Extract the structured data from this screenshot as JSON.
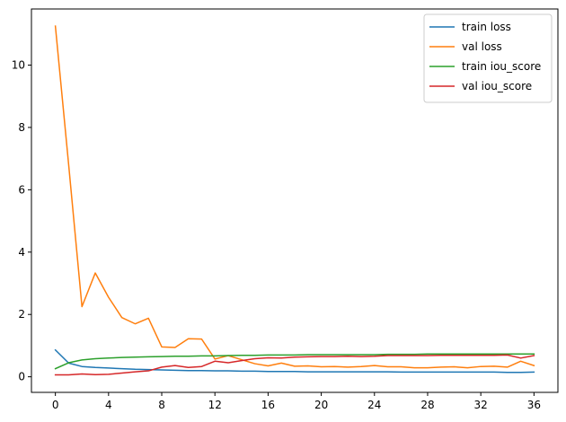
{
  "chart_data": {
    "type": "line",
    "title": "",
    "xlabel": "",
    "ylabel": "",
    "xlim": [
      -1.8,
      37.8
    ],
    "ylim": [
      -0.5,
      11.8
    ],
    "xticks": [
      0,
      4,
      8,
      12,
      16,
      20,
      24,
      28,
      32,
      36
    ],
    "yticks": [
      0,
      2,
      4,
      6,
      8,
      10
    ],
    "grid": false,
    "legend_position": "top-right",
    "x": [
      0,
      1,
      2,
      3,
      4,
      5,
      6,
      7,
      8,
      9,
      10,
      11,
      12,
      13,
      14,
      15,
      16,
      17,
      18,
      19,
      20,
      21,
      22,
      23,
      24,
      25,
      26,
      27,
      28,
      29,
      30,
      31,
      32,
      33,
      34,
      35,
      36
    ],
    "series": [
      {
        "name": "train loss",
        "color": "#1f77b4",
        "values": [
          0.86,
          0.44,
          0.33,
          0.3,
          0.28,
          0.26,
          0.24,
          0.23,
          0.22,
          0.21,
          0.2,
          0.2,
          0.19,
          0.19,
          0.18,
          0.18,
          0.17,
          0.17,
          0.17,
          0.16,
          0.16,
          0.16,
          0.16,
          0.16,
          0.16,
          0.16,
          0.15,
          0.15,
          0.15,
          0.15,
          0.15,
          0.15,
          0.15,
          0.15,
          0.14,
          0.14,
          0.15
        ]
      },
      {
        "name": "val loss",
        "color": "#ff7f0e",
        "values": [
          11.25,
          6.8,
          2.25,
          3.33,
          2.55,
          1.9,
          1.7,
          1.88,
          0.96,
          0.94,
          1.22,
          1.21,
          0.57,
          0.68,
          0.55,
          0.42,
          0.35,
          0.44,
          0.34,
          0.35,
          0.32,
          0.33,
          0.31,
          0.33,
          0.36,
          0.32,
          0.32,
          0.29,
          0.29,
          0.31,
          0.32,
          0.29,
          0.33,
          0.34,
          0.31,
          0.5,
          0.36
        ]
      },
      {
        "name": "train iou_score",
        "color": "#2ca02c",
        "values": [
          0.26,
          0.45,
          0.54,
          0.58,
          0.6,
          0.62,
          0.63,
          0.64,
          0.65,
          0.66,
          0.66,
          0.67,
          0.67,
          0.68,
          0.69,
          0.69,
          0.7,
          0.7,
          0.7,
          0.71,
          0.71,
          0.71,
          0.71,
          0.71,
          0.71,
          0.72,
          0.72,
          0.72,
          0.73,
          0.73,
          0.73,
          0.73,
          0.73,
          0.73,
          0.73,
          0.73,
          0.73
        ]
      },
      {
        "name": "val iou_score",
        "color": "#d62728",
        "values": [
          0.06,
          0.06,
          0.09,
          0.07,
          0.08,
          0.12,
          0.16,
          0.19,
          0.31,
          0.36,
          0.3,
          0.33,
          0.5,
          0.45,
          0.52,
          0.58,
          0.61,
          0.6,
          0.63,
          0.64,
          0.65,
          0.65,
          0.66,
          0.65,
          0.66,
          0.68,
          0.68,
          0.68,
          0.68,
          0.69,
          0.69,
          0.69,
          0.69,
          0.69,
          0.7,
          0.6,
          0.68
        ]
      }
    ]
  }
}
